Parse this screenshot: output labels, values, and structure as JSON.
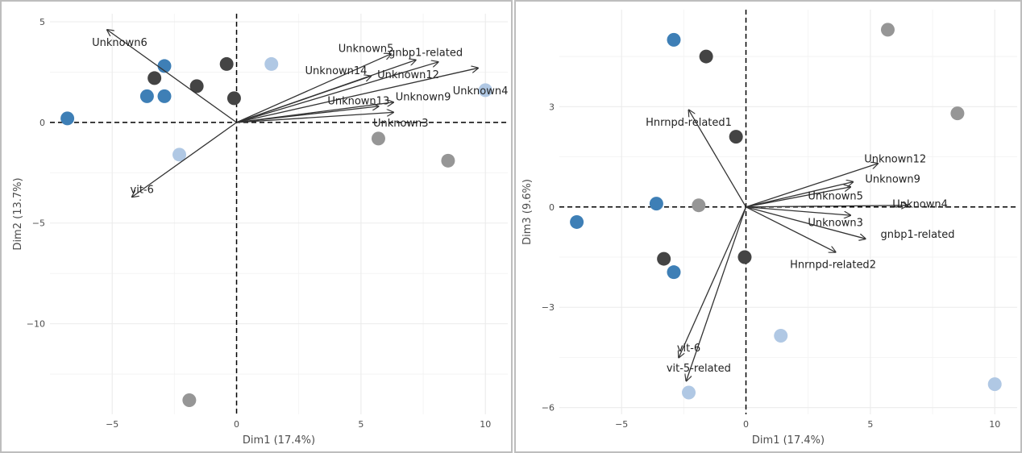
{
  "chart_data": [
    {
      "type": "scatter",
      "xlabel": "Dim1 (17.4%)",
      "ylabel": "Dim2 (13.7%)",
      "xlim": [
        -7.5,
        10.9
      ],
      "ylim": [
        -14.5,
        5.4
      ],
      "xticks": [
        -5,
        0,
        5,
        10
      ],
      "yticks": [
        -10,
        -5,
        0,
        5
      ],
      "xtick_labels": [
        "−5",
        "0",
        "5",
        "10"
      ],
      "ytick_labels": [
        "−10",
        "−5",
        "0",
        "5"
      ],
      "grid": true,
      "reference_lines": "dashed at x=0 and y=0",
      "points": [
        {
          "x": -6.8,
          "y": 0.2,
          "color": "#3e7fb6"
        },
        {
          "x": -2.9,
          "y": 2.8,
          "color": "#3e7fb6"
        },
        {
          "x": -3.6,
          "y": 1.3,
          "color": "#3e7fb6"
        },
        {
          "x": -2.9,
          "y": 1.3,
          "color": "#3e7fb6"
        },
        {
          "x": -3.3,
          "y": 2.2,
          "color": "#444444"
        },
        {
          "x": -1.6,
          "y": 1.8,
          "color": "#444444"
        },
        {
          "x": -0.4,
          "y": 2.9,
          "color": "#444444"
        },
        {
          "x": -0.1,
          "y": 1.2,
          "color": "#444444"
        },
        {
          "x": 1.4,
          "y": 2.9,
          "color": "#b0c8e4"
        },
        {
          "x": 10.0,
          "y": 1.6,
          "color": "#b0c8e4"
        },
        {
          "x": -2.3,
          "y": -1.6,
          "color": "#b0c8e4"
        },
        {
          "x": 5.7,
          "y": -0.8,
          "color": "#969696"
        },
        {
          "x": 8.5,
          "y": -1.9,
          "color": "#969696"
        },
        {
          "x": -1.9,
          "y": -13.8,
          "color": "#969696"
        }
      ],
      "vectors": [
        {
          "name": "Unknown6",
          "x": -5.2,
          "y": 4.6,
          "lx": -4.7,
          "ly": 4.0
        },
        {
          "name": "Unknown5",
          "x": 6.2,
          "y": 3.4,
          "lx": 5.2,
          "ly": 3.7
        },
        {
          "name": "gnbp1-related",
          "x": 7.2,
          "y": 3.1,
          "lx": 7.6,
          "ly": 3.5
        },
        {
          "name": "Unknown14",
          "x": 5.4,
          "y": 2.3,
          "lx": 4.0,
          "ly": 2.6
        },
        {
          "name": "Unknown12",
          "x": 8.1,
          "y": 3.0,
          "lx": 6.9,
          "ly": 2.4
        },
        {
          "name": "Unknown4",
          "x": 9.7,
          "y": 2.7,
          "lx": 9.8,
          "ly": 1.6
        },
        {
          "name": "Unknown13",
          "x": 5.7,
          "y": 0.8,
          "lx": 4.9,
          "ly": 1.1
        },
        {
          "name": "Unknown9",
          "x": 6.3,
          "y": 1.0,
          "lx": 7.5,
          "ly": 1.3
        },
        {
          "name": "Unknown3",
          "x": 6.3,
          "y": 0.5,
          "lx": 6.6,
          "ly": 0.0
        },
        {
          "name": "vit-6",
          "x": -4.2,
          "y": -3.7,
          "lx": -3.8,
          "ly": -3.3
        }
      ]
    },
    {
      "type": "scatter",
      "xlabel": "Dim1 (17.4%)",
      "ylabel": "Dim3 (9.6%)",
      "xlim": [
        -7.5,
        10.9
      ],
      "ylim": [
        -6.2,
        5.9
      ],
      "xticks": [
        -5,
        0,
        5,
        10
      ],
      "yticks": [
        -6,
        -3,
        0,
        3
      ],
      "xtick_labels": [
        "−5",
        "0",
        "5",
        "10"
      ],
      "ytick_labels": [
        "−6",
        "−3",
        "0",
        "3"
      ],
      "grid": true,
      "reference_lines": "dashed at x=0 and y=0",
      "points": [
        {
          "x": -2.9,
          "y": 5.0,
          "color": "#3e7fb6"
        },
        {
          "x": -1.6,
          "y": 4.5,
          "color": "#444444"
        },
        {
          "x": 5.7,
          "y": 5.3,
          "color": "#969696"
        },
        {
          "x": 8.5,
          "y": 2.8,
          "color": "#969696"
        },
        {
          "x": -0.4,
          "y": 2.1,
          "color": "#444444"
        },
        {
          "x": -3.6,
          "y": 0.1,
          "color": "#3e7fb6"
        },
        {
          "x": -1.9,
          "y": 0.05,
          "color": "#969696"
        },
        {
          "x": -6.8,
          "y": -0.45,
          "color": "#3e7fb6"
        },
        {
          "x": -3.3,
          "y": -1.55,
          "color": "#444444"
        },
        {
          "x": -0.05,
          "y": -1.5,
          "color": "#444444"
        },
        {
          "x": -2.9,
          "y": -1.95,
          "color": "#3e7fb6"
        },
        {
          "x": 1.4,
          "y": -3.85,
          "color": "#b0c8e4"
        },
        {
          "x": -2.3,
          "y": -5.55,
          "color": "#b0c8e4"
        },
        {
          "x": 10.0,
          "y": -5.3,
          "color": "#b0c8e4"
        }
      ],
      "vectors": [
        {
          "name": "Hnrnpd-related1",
          "x": -2.3,
          "y": 2.9,
          "lx": -2.3,
          "ly": 2.55
        },
        {
          "name": "Unknown12",
          "x": 5.3,
          "y": 1.3,
          "lx": 6.0,
          "ly": 1.45
        },
        {
          "name": "Unknown9",
          "x": 4.3,
          "y": 0.75,
          "lx": 5.9,
          "ly": 0.85
        },
        {
          "name": "Unknown5",
          "x": 4.2,
          "y": 0.6,
          "lx": 3.6,
          "ly": 0.35
        },
        {
          "name": "Unknown4",
          "x": 6.5,
          "y": 0.05,
          "lx": 7.0,
          "ly": 0.1
        },
        {
          "name": "Unknown3",
          "x": 4.2,
          "y": -0.25,
          "lx": 3.6,
          "ly": -0.45
        },
        {
          "name": "gnbp1-related",
          "x": 4.8,
          "y": -0.95,
          "lx": 6.9,
          "ly": -0.8
        },
        {
          "name": "Hnrnpd-related2",
          "x": 3.6,
          "y": -1.35,
          "lx": 3.5,
          "ly": -1.7
        },
        {
          "name": "vit-6",
          "x": -2.7,
          "y": -4.5,
          "lx": -2.3,
          "ly": -4.2
        },
        {
          "name": "vit-5-related",
          "x": -2.4,
          "y": -5.2,
          "lx": -1.9,
          "ly": -4.8
        }
      ]
    }
  ]
}
